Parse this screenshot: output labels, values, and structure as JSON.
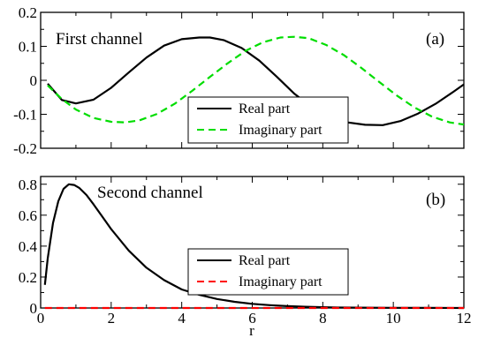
{
  "chart_data": [
    {
      "type": "line",
      "panel_label": "(a)",
      "annotation": "First channel",
      "xlabel": "",
      "ylabel": "",
      "xlim": [
        0,
        12
      ],
      "ylim": [
        -0.2,
        0.2
      ],
      "x_ticks": [
        0,
        2,
        4,
        6,
        8,
        10,
        12
      ],
      "y_ticks": [
        -0.2,
        -0.1,
        0,
        0.1,
        0.2
      ],
      "y_tick_labels": [
        "-0.2",
        "-0.1",
        "0",
        "0.1",
        "0.2"
      ],
      "legend_placement": "lower-center",
      "series": [
        {
          "name": "Real part",
          "color": "#000000",
          "line_style": "solid",
          "x": [
            0.2,
            0.6,
            1.0,
            1.5,
            2.0,
            2.5,
            3.0,
            3.5,
            4.0,
            4.5,
            4.8,
            5.2,
            5.7,
            6.2,
            6.7,
            7.2,
            7.7,
            8.2,
            8.7,
            9.2,
            9.7,
            10.2,
            10.7,
            11.2,
            11.7,
            12.0
          ],
          "y": [
            -0.01,
            -0.058,
            -0.068,
            -0.057,
            -0.022,
            0.023,
            0.067,
            0.102,
            0.121,
            0.126,
            0.126,
            0.118,
            0.095,
            0.058,
            0.01,
            -0.04,
            -0.08,
            -0.108,
            -0.124,
            -0.131,
            -0.132,
            -0.12,
            -0.098,
            -0.069,
            -0.034,
            -0.012
          ]
        },
        {
          "name": "Imaginary part",
          "color": "#00dd00",
          "line_style": "dashed",
          "x": [
            0.2,
            0.6,
            1.0,
            1.5,
            2.0,
            2.4,
            2.8,
            3.3,
            3.8,
            4.3,
            4.8,
            5.3,
            5.8,
            6.3,
            6.8,
            7.2,
            7.6,
            8.1,
            8.6,
            9.1,
            9.6,
            10.1,
            10.6,
            11.1,
            11.6,
            12.0
          ],
          "y": [
            -0.015,
            -0.055,
            -0.086,
            -0.111,
            -0.122,
            -0.124,
            -0.118,
            -0.099,
            -0.069,
            -0.031,
            0.01,
            0.05,
            0.086,
            0.112,
            0.126,
            0.128,
            0.124,
            0.104,
            0.074,
            0.036,
            -0.005,
            -0.045,
            -0.08,
            -0.107,
            -0.124,
            -0.13
          ]
        }
      ]
    },
    {
      "type": "line",
      "panel_label": "(b)",
      "annotation": "Second channel",
      "xlabel": "r",
      "ylabel": "",
      "xlim": [
        0,
        12
      ],
      "ylim": [
        0,
        0.85
      ],
      "x_ticks": [
        0,
        2,
        4,
        6,
        8,
        10,
        12
      ],
      "x_tick_labels": [
        "0",
        "2",
        "4",
        "6",
        "8",
        "10",
        "12"
      ],
      "y_ticks": [
        0,
        0.2,
        0.4,
        0.6,
        0.8
      ],
      "y_tick_labels": [
        "0",
        "0.2",
        "0.4",
        "0.6",
        "0.8"
      ],
      "legend_placement": "lower-right",
      "series": [
        {
          "name": "Real part",
          "color": "#000000",
          "line_style": "solid",
          "x": [
            0.12,
            0.2,
            0.35,
            0.5,
            0.65,
            0.8,
            0.95,
            1.1,
            1.3,
            1.5,
            1.75,
            2.0,
            2.5,
            3.0,
            3.5,
            4.0,
            4.5,
            5.0,
            5.5,
            6.0,
            6.5,
            7.0,
            7.5,
            8.0,
            8.5,
            9.0,
            10.0,
            11.0,
            12.0
          ],
          "y": [
            0.15,
            0.32,
            0.55,
            0.69,
            0.77,
            0.8,
            0.795,
            0.775,
            0.73,
            0.67,
            0.59,
            0.51,
            0.37,
            0.26,
            0.18,
            0.12,
            0.085,
            0.058,
            0.04,
            0.027,
            0.018,
            0.012,
            0.008,
            0.005,
            0.003,
            0.002,
            0.001,
            0.0005,
            0.0
          ]
        },
        {
          "name": "Imaginary part",
          "color": "#ff0000",
          "line_style": "dashed",
          "x": [
            0.12,
            12.0
          ],
          "y": [
            0.0,
            0.0
          ]
        }
      ]
    }
  ]
}
